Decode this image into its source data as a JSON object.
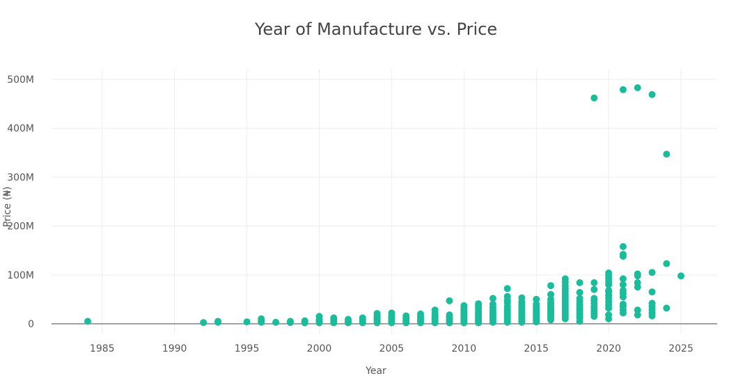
{
  "chart_data": {
    "type": "scatter",
    "title": "Year of Manufacture vs. Price",
    "xlabel": "Year",
    "ylabel": "Price (₦)",
    "xlim": [
      1981.5,
      2027.5
    ],
    "ylim": [
      -20000000,
      520000000
    ],
    "x_ticks": [
      1985,
      1990,
      1995,
      2000,
      2005,
      2010,
      2015,
      2020,
      2025
    ],
    "y_ticks": [
      {
        "value": 0,
        "label": "0"
      },
      {
        "value": 100000000,
        "label": "100M"
      },
      {
        "value": 200000000,
        "label": "200M"
      },
      {
        "value": 300000000,
        "label": "300M"
      },
      {
        "value": 400000000,
        "label": "400M"
      },
      {
        "value": 500000000,
        "label": "500M"
      }
    ],
    "grid": true,
    "marker_color": "#1abc9c",
    "series": [
      {
        "points": [
          [
            1984,
            5000000
          ],
          [
            1992,
            2500000
          ],
          [
            1993,
            3000000
          ],
          [
            1993,
            5000000
          ],
          [
            1995,
            4000000
          ],
          [
            1996,
            3000000
          ],
          [
            1996,
            6000000
          ],
          [
            1996,
            10000000
          ],
          [
            1997,
            3000000
          ],
          [
            1998,
            2500000
          ],
          [
            1998,
            5000000
          ],
          [
            1999,
            2000000
          ],
          [
            1999,
            4000000
          ],
          [
            1999,
            6000000
          ],
          [
            2000,
            2000000
          ],
          [
            2000,
            4000000
          ],
          [
            2000,
            6000000
          ],
          [
            2000,
            9000000
          ],
          [
            2000,
            15000000
          ],
          [
            2001,
            2000000
          ],
          [
            2001,
            5000000
          ],
          [
            2001,
            8000000
          ],
          [
            2001,
            12000000
          ],
          [
            2002,
            2000000
          ],
          [
            2002,
            5000000
          ],
          [
            2002,
            9000000
          ],
          [
            2003,
            2000000
          ],
          [
            2003,
            5000000
          ],
          [
            2003,
            8000000
          ],
          [
            2003,
            12000000
          ],
          [
            2004,
            2000000
          ],
          [
            2004,
            5000000
          ],
          [
            2004,
            8000000
          ],
          [
            2004,
            11000000
          ],
          [
            2004,
            14000000
          ],
          [
            2004,
            17000000
          ],
          [
            2004,
            21000000
          ],
          [
            2005,
            2000000
          ],
          [
            2005,
            5000000
          ],
          [
            2005,
            8000000
          ],
          [
            2005,
            12000000
          ],
          [
            2005,
            16000000
          ],
          [
            2005,
            22000000
          ],
          [
            2006,
            2000000
          ],
          [
            2006,
            5000000
          ],
          [
            2006,
            8000000
          ],
          [
            2006,
            12000000
          ],
          [
            2006,
            16000000
          ],
          [
            2007,
            2000000
          ],
          [
            2007,
            5000000
          ],
          [
            2007,
            8000000
          ],
          [
            2007,
            12000000
          ],
          [
            2007,
            16000000
          ],
          [
            2007,
            20000000
          ],
          [
            2008,
            2000000
          ],
          [
            2008,
            5000000
          ],
          [
            2008,
            8000000
          ],
          [
            2008,
            11000000
          ],
          [
            2008,
            14000000
          ],
          [
            2008,
            17000000
          ],
          [
            2008,
            21000000
          ],
          [
            2008,
            28000000
          ],
          [
            2009,
            2000000
          ],
          [
            2009,
            5000000
          ],
          [
            2009,
            8000000
          ],
          [
            2009,
            11000000
          ],
          [
            2009,
            14000000
          ],
          [
            2009,
            18000000
          ],
          [
            2009,
            47000000
          ],
          [
            2010,
            2000000
          ],
          [
            2010,
            5000000
          ],
          [
            2010,
            8000000
          ],
          [
            2010,
            11000000
          ],
          [
            2010,
            14000000
          ],
          [
            2010,
            17000000
          ],
          [
            2010,
            20000000
          ],
          [
            2010,
            24000000
          ],
          [
            2010,
            28000000
          ],
          [
            2010,
            32000000
          ],
          [
            2010,
            37000000
          ],
          [
            2011,
            2000000
          ],
          [
            2011,
            5000000
          ],
          [
            2011,
            8000000
          ],
          [
            2011,
            11000000
          ],
          [
            2011,
            14000000
          ],
          [
            2011,
            18000000
          ],
          [
            2011,
            22000000
          ],
          [
            2011,
            26000000
          ],
          [
            2011,
            32000000
          ],
          [
            2011,
            37000000
          ],
          [
            2011,
            41000000
          ],
          [
            2012,
            3000000
          ],
          [
            2012,
            6000000
          ],
          [
            2012,
            9000000
          ],
          [
            2012,
            12000000
          ],
          [
            2012,
            15000000
          ],
          [
            2012,
            18000000
          ],
          [
            2012,
            21000000
          ],
          [
            2012,
            25000000
          ],
          [
            2012,
            29000000
          ],
          [
            2012,
            34000000
          ],
          [
            2012,
            40000000
          ],
          [
            2012,
            52000000
          ],
          [
            2013,
            3000000
          ],
          [
            2013,
            6000000
          ],
          [
            2013,
            9000000
          ],
          [
            2013,
            12000000
          ],
          [
            2013,
            15000000
          ],
          [
            2013,
            18000000
          ],
          [
            2013,
            22000000
          ],
          [
            2013,
            26000000
          ],
          [
            2013,
            30000000
          ],
          [
            2013,
            35000000
          ],
          [
            2013,
            43000000
          ],
          [
            2013,
            48000000
          ],
          [
            2013,
            56000000
          ],
          [
            2013,
            72000000
          ],
          [
            2014,
            3000000
          ],
          [
            2014,
            6000000
          ],
          [
            2014,
            9000000
          ],
          [
            2014,
            12000000
          ],
          [
            2014,
            15000000
          ],
          [
            2014,
            18000000
          ],
          [
            2014,
            21000000
          ],
          [
            2014,
            24000000
          ],
          [
            2014,
            27000000
          ],
          [
            2014,
            30000000
          ],
          [
            2014,
            33000000
          ],
          [
            2014,
            37000000
          ],
          [
            2014,
            41000000
          ],
          [
            2014,
            45000000
          ],
          [
            2014,
            53000000
          ],
          [
            2015,
            4000000
          ],
          [
            2015,
            7000000
          ],
          [
            2015,
            10000000
          ],
          [
            2015,
            13000000
          ],
          [
            2015,
            16000000
          ],
          [
            2015,
            19000000
          ],
          [
            2015,
            22000000
          ],
          [
            2015,
            25000000
          ],
          [
            2015,
            28000000
          ],
          [
            2015,
            31000000
          ],
          [
            2015,
            35000000
          ],
          [
            2015,
            40000000
          ],
          [
            2015,
            50000000
          ],
          [
            2016,
            8000000
          ],
          [
            2016,
            12000000
          ],
          [
            2016,
            15000000
          ],
          [
            2016,
            18000000
          ],
          [
            2016,
            21000000
          ],
          [
            2016,
            24000000
          ],
          [
            2016,
            27000000
          ],
          [
            2016,
            30000000
          ],
          [
            2016,
            33000000
          ],
          [
            2016,
            36000000
          ],
          [
            2016,
            40000000
          ],
          [
            2016,
            44000000
          ],
          [
            2016,
            50000000
          ],
          [
            2016,
            60000000
          ],
          [
            2016,
            78000000
          ],
          [
            2017,
            10000000
          ],
          [
            2017,
            14000000
          ],
          [
            2017,
            18000000
          ],
          [
            2017,
            22000000
          ],
          [
            2017,
            26000000
          ],
          [
            2017,
            30000000
          ],
          [
            2017,
            34000000
          ],
          [
            2017,
            38000000
          ],
          [
            2017,
            42000000
          ],
          [
            2017,
            46000000
          ],
          [
            2017,
            50000000
          ],
          [
            2017,
            55000000
          ],
          [
            2017,
            60000000
          ],
          [
            2017,
            66000000
          ],
          [
            2017,
            72000000
          ],
          [
            2017,
            78000000
          ],
          [
            2017,
            85000000
          ],
          [
            2017,
            92000000
          ],
          [
            2018,
            5000000
          ],
          [
            2018,
            12000000
          ],
          [
            2018,
            16000000
          ],
          [
            2018,
            20000000
          ],
          [
            2018,
            24000000
          ],
          [
            2018,
            28000000
          ],
          [
            2018,
            32000000
          ],
          [
            2018,
            36000000
          ],
          [
            2018,
            40000000
          ],
          [
            2018,
            46000000
          ],
          [
            2018,
            52000000
          ],
          [
            2018,
            64000000
          ],
          [
            2018,
            84000000
          ],
          [
            2019,
            15000000
          ],
          [
            2019,
            20000000
          ],
          [
            2019,
            25000000
          ],
          [
            2019,
            30000000
          ],
          [
            2019,
            35000000
          ],
          [
            2019,
            42000000
          ],
          [
            2019,
            48000000
          ],
          [
            2019,
            52000000
          ],
          [
            2019,
            70000000
          ],
          [
            2019,
            84000000
          ],
          [
            2019,
            462000000
          ],
          [
            2020,
            10000000
          ],
          [
            2020,
            18000000
          ],
          [
            2020,
            32000000
          ],
          [
            2020,
            38000000
          ],
          [
            2020,
            45000000
          ],
          [
            2020,
            52000000
          ],
          [
            2020,
            58000000
          ],
          [
            2020,
            65000000
          ],
          [
            2020,
            68000000
          ],
          [
            2020,
            80000000
          ],
          [
            2020,
            86000000
          ],
          [
            2020,
            92000000
          ],
          [
            2020,
            98000000
          ],
          [
            2020,
            104000000
          ],
          [
            2021,
            22000000
          ],
          [
            2021,
            28000000
          ],
          [
            2021,
            35000000
          ],
          [
            2021,
            40000000
          ],
          [
            2021,
            55000000
          ],
          [
            2021,
            62000000
          ],
          [
            2021,
            68000000
          ],
          [
            2021,
            80000000
          ],
          [
            2021,
            92000000
          ],
          [
            2021,
            138000000
          ],
          [
            2021,
            142000000
          ],
          [
            2021,
            158000000
          ],
          [
            2021,
            479000000
          ],
          [
            2022,
            18000000
          ],
          [
            2022,
            28000000
          ],
          [
            2022,
            75000000
          ],
          [
            2022,
            84000000
          ],
          [
            2022,
            98000000
          ],
          [
            2022,
            102000000
          ],
          [
            2022,
            483000000
          ],
          [
            2023,
            16000000
          ],
          [
            2023,
            22000000
          ],
          [
            2023,
            28000000
          ],
          [
            2023,
            35000000
          ],
          [
            2023,
            42000000
          ],
          [
            2023,
            65000000
          ],
          [
            2023,
            105000000
          ],
          [
            2023,
            469000000
          ],
          [
            2024,
            32000000
          ],
          [
            2024,
            123000000
          ],
          [
            2024,
            347000000
          ],
          [
            2025,
            98000000
          ]
        ]
      }
    ]
  }
}
